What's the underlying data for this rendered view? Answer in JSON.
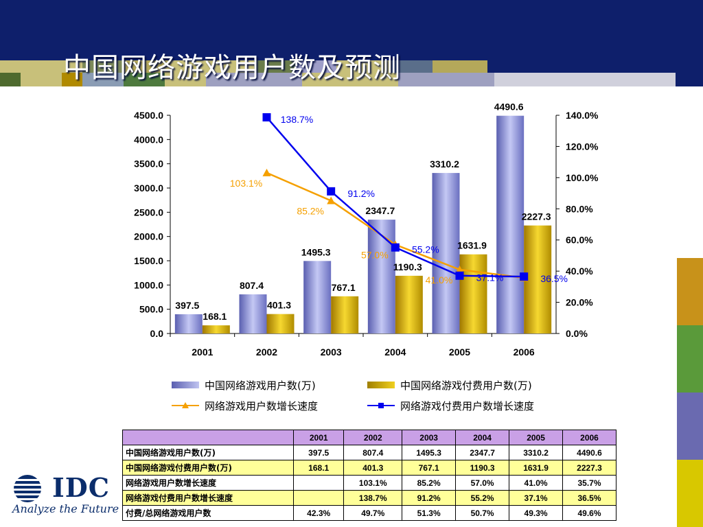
{
  "title": "中国网络游戏用户数及预测",
  "colors": {
    "header_bg": "#0e1f6b",
    "bar_users": "#8a8fd8",
    "bar_paid": "#d4b000",
    "line_users_growth": "#f5a000",
    "line_paid_growth": "#0000ee",
    "table_header_bg": "#c9a0e6",
    "table_paid_row_bg": "#ffff99",
    "logo_color": "#0b2d6b"
  },
  "logo": {
    "text": "IDC",
    "tagline": "Analyze the Future"
  },
  "chart_data": {
    "type": "bar",
    "categories": [
      "2001",
      "2002",
      "2003",
      "2004",
      "2005",
      "2006"
    ],
    "series": [
      {
        "name": "中国网络游戏用户数(万)",
        "type": "bar",
        "axis": "left",
        "values": [
          397.5,
          807.4,
          1495.3,
          2347.7,
          3310.2,
          4490.6
        ]
      },
      {
        "name": "中国网络游戏付费用户数(万)",
        "type": "bar",
        "axis": "left",
        "values": [
          168.1,
          401.3,
          767.1,
          1190.3,
          1631.9,
          2227.3
        ]
      },
      {
        "name": "网络游戏用户数增长速度",
        "type": "line",
        "axis": "right",
        "values": [
          null,
          103.1,
          85.2,
          57.0,
          41.0,
          35.7
        ],
        "labels": [
          "",
          "103.1%",
          "85.2%",
          "57.0%",
          "41.0%",
          ""
        ]
      },
      {
        "name": "网络游戏付费用户数增长速度",
        "type": "line",
        "axis": "right",
        "values": [
          null,
          138.7,
          91.2,
          55.2,
          37.1,
          36.5
        ],
        "labels": [
          "",
          "138.7%",
          "91.2%",
          "55.2%",
          "37.1%",
          "36.5%"
        ]
      }
    ],
    "bar_labels": {
      "users": [
        "397.5",
        "807.4",
        "1495.3",
        "2347.7",
        "3310.2",
        "4490.6"
      ],
      "paid": [
        "168.1",
        "401.3",
        "767.1",
        "1190.3",
        "1631.9",
        "2227.3"
      ]
    },
    "y_left": {
      "ylim": [
        0,
        4500
      ],
      "ticks": [
        "4500.0",
        "4000.0",
        "3500.0",
        "3000.0",
        "2500.0",
        "2000.0",
        "1500.0",
        "1000.0",
        "500.0",
        "0.0"
      ]
    },
    "y_right": {
      "ylim": [
        0,
        140
      ],
      "ticks": [
        "140.0%",
        "120.0%",
        "100.0%",
        "80.0%",
        "60.0%",
        "40.0%",
        "20.0%",
        "0.0%"
      ]
    },
    "legend_placement": "bottom",
    "grid": false
  },
  "table": {
    "headers": [
      "",
      "2001",
      "2002",
      "2003",
      "2004",
      "2005",
      "2006"
    ],
    "rows": [
      {
        "label": "中国网络游戏用户数(万)",
        "cells": [
          "397.5",
          "807.4",
          "1495.3",
          "2347.7",
          "3310.2",
          "4490.6"
        ]
      },
      {
        "label": "中国网络游戏付费用户数(万)",
        "cells": [
          "168.1",
          "401.3",
          "767.1",
          "1190.3",
          "1631.9",
          "2227.3"
        ]
      },
      {
        "label": "网络游戏用户数增长速度",
        "cells": [
          "",
          "103.1%",
          "85.2%",
          "57.0%",
          "41.0%",
          "35.7%"
        ]
      },
      {
        "label": "网络游戏付费用户数增长速度",
        "cells": [
          "",
          "138.7%",
          "91.2%",
          "55.2%",
          "37.1%",
          "36.5%"
        ]
      },
      {
        "label": "付费/总网络游戏用户数",
        "cells": [
          "42.3%",
          "49.7%",
          "51.3%",
          "50.7%",
          "49.3%",
          "49.6%"
        ]
      }
    ]
  }
}
